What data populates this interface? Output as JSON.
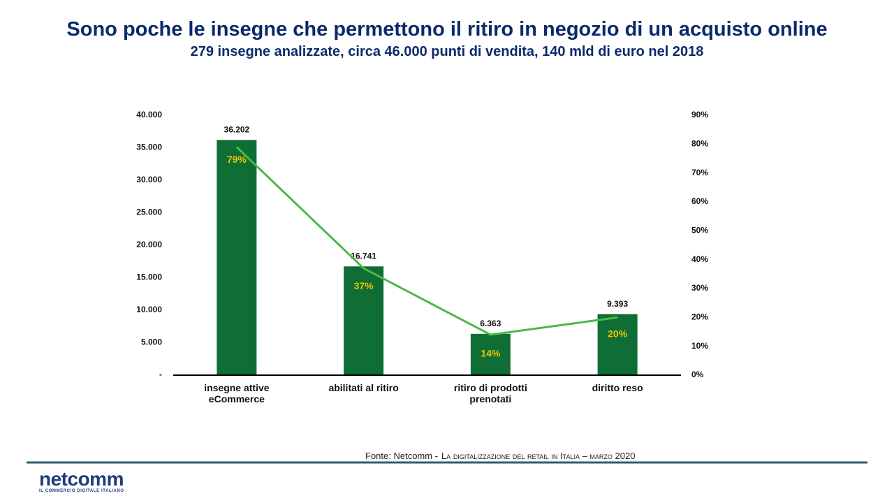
{
  "chart_data": {
    "type": "bar-line",
    "title": "Sono poche le insegne che permettono il ritiro in negozio di un acquisto online",
    "subtitle": "279 insegne analizzate, circa 46.000 punti di vendita, 140 mld di euro nel 2018",
    "categories": [
      "insegne attive eCommerce",
      "abilitati al ritiro",
      "ritiro di prodotti prenotati",
      "diritto reso"
    ],
    "series": [
      {
        "type": "bar",
        "color": "#0e6e35",
        "values": [
          36202,
          16741,
          6363,
          9393
        ],
        "value_labels": [
          "36.202",
          "16.741",
          "6.363",
          "9.393"
        ]
      },
      {
        "type": "line",
        "axis": "y2",
        "color": "#4db848",
        "label_color": "#f2c200",
        "values": [
          79,
          37,
          14,
          20
        ],
        "value_labels": [
          "79%",
          "37%",
          "14%",
          "20%"
        ]
      }
    ],
    "ylim": [
      0,
      40000
    ],
    "yticks": [
      {
        "value": 0,
        "label": "-"
      },
      {
        "value": 5000,
        "label": "5.000"
      },
      {
        "value": 10000,
        "label": "10.000"
      },
      {
        "value": 15000,
        "label": "15.000"
      },
      {
        "value": 20000,
        "label": "20.000"
      },
      {
        "value": 25000,
        "label": "25.000"
      },
      {
        "value": 30000,
        "label": "30.000"
      },
      {
        "value": 35000,
        "label": "35.000"
      },
      {
        "value": 40000,
        "label": "40.000"
      }
    ],
    "y2lim": [
      0,
      90
    ],
    "y2ticks": [
      {
        "value": 0,
        "label": "0%"
      },
      {
        "value": 10,
        "label": "10%"
      },
      {
        "value": 20,
        "label": "20%"
      },
      {
        "value": 30,
        "label": "30%"
      },
      {
        "value": 40,
        "label": "40%"
      },
      {
        "value": 50,
        "label": "50%"
      },
      {
        "value": 60,
        "label": "60%"
      },
      {
        "value": 70,
        "label": "70%"
      },
      {
        "value": 80,
        "label": "80%"
      },
      {
        "value": 90,
        "label": "90%"
      }
    ],
    "grid": false,
    "source": {
      "prefix": "Fonte: Netcomm -",
      "title": "La digitalizzazione del retail in Italia – marzo 2020"
    }
  },
  "logo": {
    "name": "netcomm",
    "tagline": "IL COMMERCIO DIGITALE ITALIANO"
  }
}
